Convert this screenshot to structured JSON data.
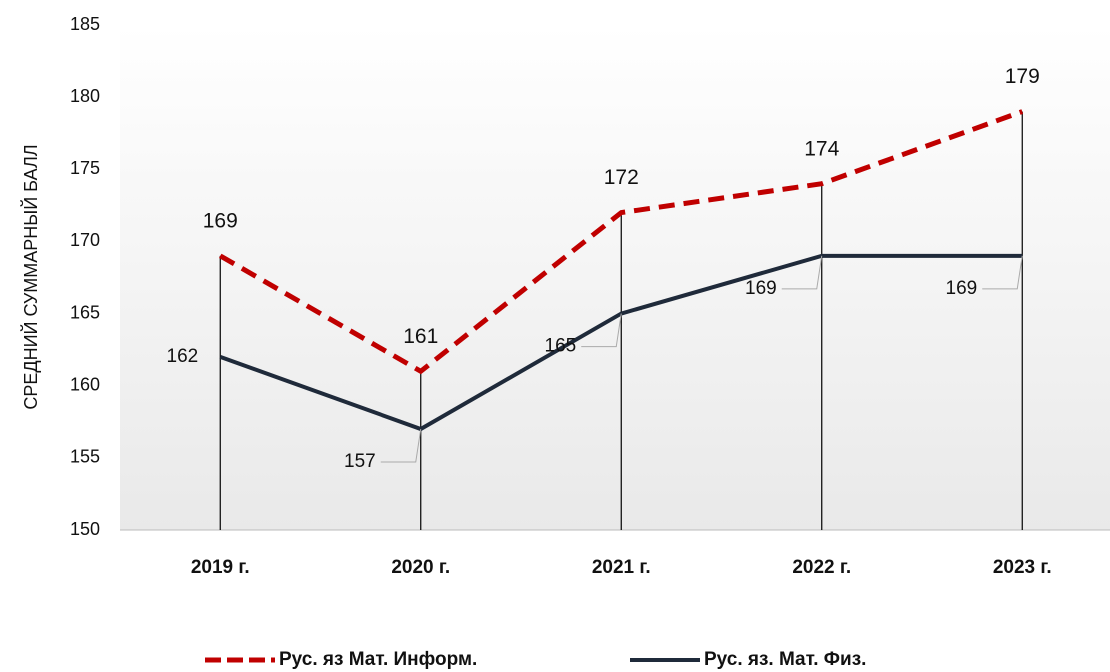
{
  "chart_data": {
    "type": "line",
    "y_label": "СРЕДНИЙ СУММАРНЫЙ БАЛЛ",
    "categories": [
      "2019 г.",
      "2020 г.",
      "2021 г.",
      "2022 г.",
      "2023 г."
    ],
    "series": [
      {
        "name": "Рус. яз Мат. Информ.",
        "color": "#c00000",
        "dash": true,
        "values": [
          169,
          161,
          172,
          174,
          179
        ]
      },
      {
        "name": "Рус. яз. Мат. Физ.",
        "color": "#1f2a3a",
        "dash": false,
        "values": [
          162,
          157,
          165,
          169,
          169
        ]
      }
    ],
    "ylim": [
      150,
      185
    ],
    "yticks": [
      150,
      155,
      160,
      165,
      170,
      175,
      180,
      185
    ],
    "grid": false
  }
}
